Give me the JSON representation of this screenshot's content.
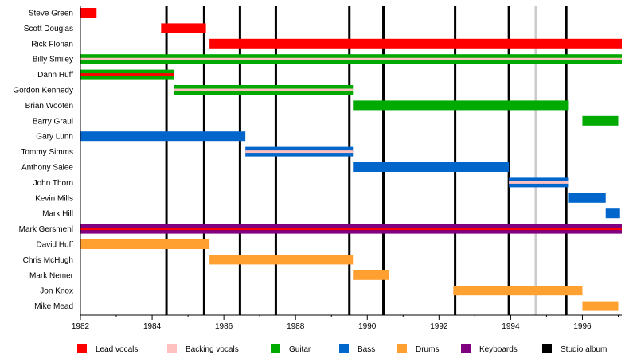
{
  "chart_data": {
    "type": "timeline",
    "title": "",
    "xlim": [
      1982,
      1997.1
    ],
    "x_ticks": [
      {
        "value": 1982,
        "label": "1982"
      },
      {
        "value": 1984,
        "label": "1984"
      },
      {
        "value": 1986,
        "label": "1986"
      },
      {
        "value": 1988,
        "label": "1988"
      },
      {
        "value": 1990,
        "label": "1990"
      },
      {
        "value": 1992,
        "label": "1992"
      },
      {
        "value": 1994,
        "label": "1994"
      },
      {
        "value": 1996,
        "label": "1996"
      }
    ],
    "minor_ticks": [
      1983,
      1985,
      1987,
      1989,
      1991,
      1993,
      1995,
      1997
    ],
    "members": [
      "Steve Green",
      "Scott Douglas",
      "Rick Florian",
      "Billy Smiley",
      "Dann Huff",
      "Gordon Kennedy",
      "Brian Wooten",
      "Barry Graul",
      "Gary Lunn",
      "Tommy Simms",
      "Anthony Salee",
      "John Thorn",
      "Kevin Mills",
      "Mark Hill",
      "Mark Gersmehl",
      "David Huff",
      "Chris McHugh",
      "Mark Nemer",
      "Jon Knox",
      "Mike Mead"
    ],
    "roles": [
      {
        "key": "lead",
        "label": "Lead vocals",
        "color": "#ff0000"
      },
      {
        "key": "backing",
        "label": "Backing vocals",
        "color": "#ffc0c0"
      },
      {
        "key": "guitar",
        "label": "Guitar",
        "color": "#00aa00"
      },
      {
        "key": "bass",
        "label": "Bass",
        "color": "#0066cc"
      },
      {
        "key": "drums",
        "label": "Drums",
        "color": "#ffa030"
      },
      {
        "key": "keys",
        "label": "Keyboards",
        "color": "#800080"
      },
      {
        "key": "album",
        "label": "Studio album",
        "color": "#000000"
      }
    ],
    "bars": [
      {
        "member": 0,
        "role": "lead",
        "start": 1982.0,
        "end": 1982.45
      },
      {
        "member": 1,
        "role": "lead",
        "start": 1984.25,
        "end": 1985.5
      },
      {
        "member": 2,
        "role": "lead",
        "start": 1985.6,
        "end": 1997.1
      },
      {
        "member": 3,
        "role": "guitar",
        "start": 1982.0,
        "end": 1997.1,
        "accent": "backing"
      },
      {
        "member": 4,
        "role": "guitar",
        "start": 1982.0,
        "end": 1984.6,
        "accent": "lead"
      },
      {
        "member": 5,
        "role": "guitar",
        "start": 1984.6,
        "end": 1989.6,
        "accent": "backing"
      },
      {
        "member": 6,
        "role": "guitar",
        "start": 1989.6,
        "end": 1995.6
      },
      {
        "member": 7,
        "role": "guitar",
        "start": 1996.0,
        "end": 1997.0
      },
      {
        "member": 8,
        "role": "bass",
        "start": 1982.0,
        "end": 1986.6
      },
      {
        "member": 9,
        "role": "bass",
        "start": 1986.6,
        "end": 1989.6,
        "accent": "backing"
      },
      {
        "member": 10,
        "role": "bass",
        "start": 1989.6,
        "end": 1993.95
      },
      {
        "member": 11,
        "role": "bass",
        "start": 1993.95,
        "end": 1995.6,
        "accent": "backing"
      },
      {
        "member": 12,
        "role": "bass",
        "start": 1995.6,
        "end": 1996.65
      },
      {
        "member": 13,
        "role": "bass",
        "start": 1996.65,
        "end": 1997.05
      },
      {
        "member": 14,
        "role": "keys",
        "start": 1982.0,
        "end": 1997.1,
        "accent": "lead"
      },
      {
        "member": 15,
        "role": "drums",
        "start": 1982.0,
        "end": 1985.6
      },
      {
        "member": 16,
        "role": "drums",
        "start": 1985.6,
        "end": 1989.6
      },
      {
        "member": 17,
        "role": "drums",
        "start": 1989.6,
        "end": 1990.6
      },
      {
        "member": 18,
        "role": "drums",
        "start": 1992.4,
        "end": 1996.0
      },
      {
        "member": 19,
        "role": "drums",
        "start": 1996.0,
        "end": 1997.0
      }
    ],
    "album_years": [
      1984.4,
      1985.45,
      1986.45,
      1987.45,
      1989.5,
      1990.45,
      1992.45,
      1993.95,
      1995.55
    ],
    "highlight_years": [
      1994.7
    ]
  }
}
